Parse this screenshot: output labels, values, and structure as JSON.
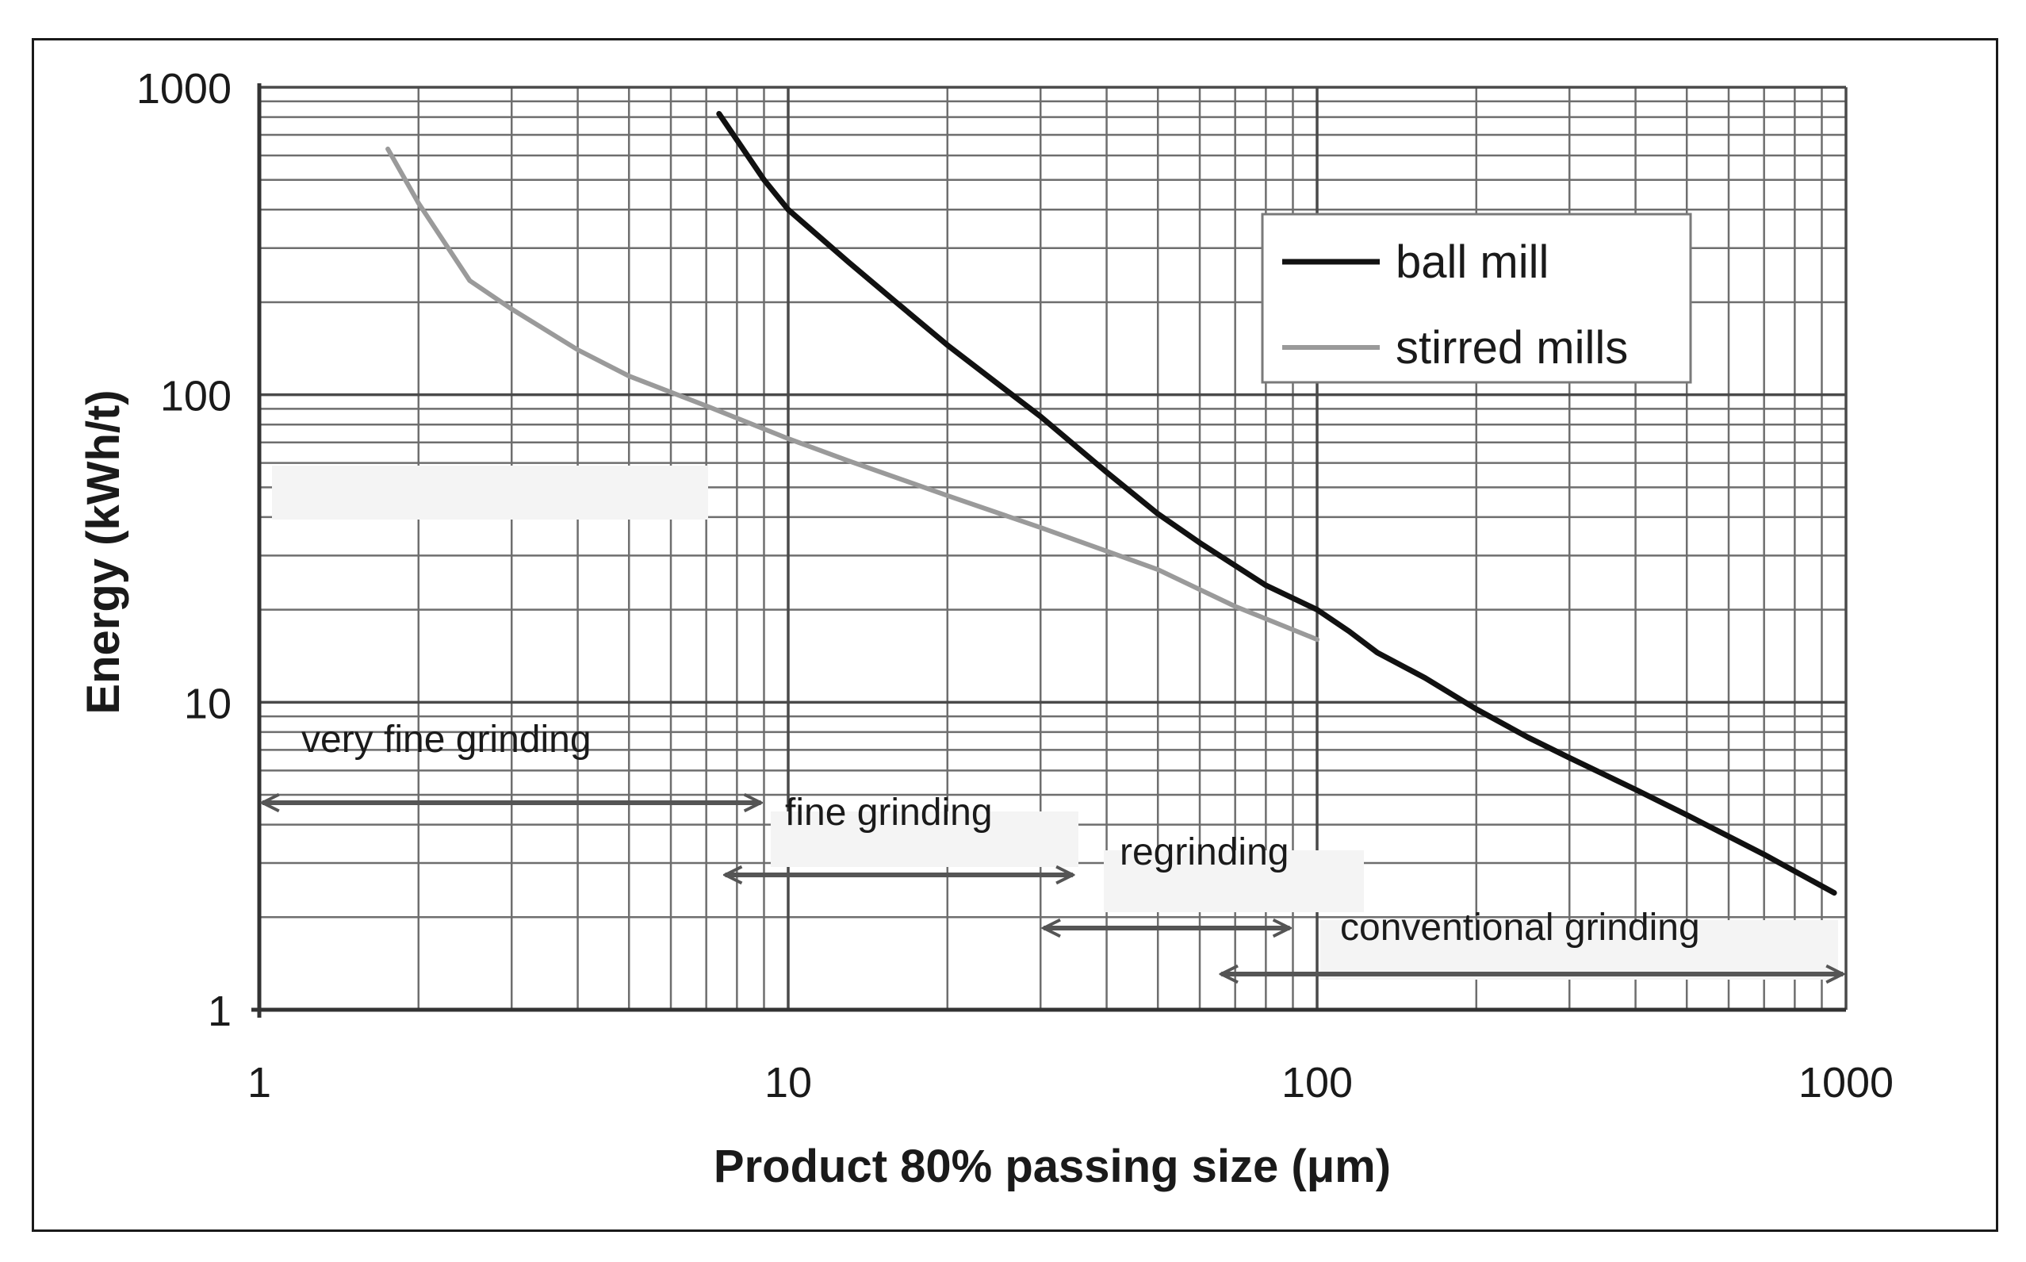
{
  "chart_data": {
    "type": "line",
    "title": "",
    "xlabel": "Product 80% passing size (μm)",
    "ylabel": "Energy (kWh/t)",
    "x_scale": "log",
    "y_scale": "log",
    "xlim": [
      1,
      1000
    ],
    "ylim": [
      1,
      1000
    ],
    "x_ticks": [
      "1",
      "10",
      "100",
      "1000"
    ],
    "y_ticks": [
      "1",
      "10",
      "100",
      "1000"
    ],
    "grid": true,
    "legend_position": "top-right",
    "series": [
      {
        "name": "ball mill",
        "color": "#111111",
        "x": [
          7.4,
          9,
          10,
          13,
          16,
          20,
          25,
          30,
          40,
          50,
          60,
          80,
          100,
          115,
          130,
          160,
          200,
          250,
          300,
          400,
          500,
          700,
          950
        ],
        "y": [
          820,
          500,
          400,
          270,
          200,
          145,
          108,
          85,
          56,
          41,
          33,
          24,
          20,
          17,
          14.5,
          12,
          9.5,
          7.7,
          6.6,
          5.2,
          4.3,
          3.2,
          2.4
        ]
      },
      {
        "name": "stirred mills",
        "color": "#9a9a9a",
        "x": [
          1.75,
          2,
          2.5,
          3,
          4,
          5,
          7,
          10,
          13,
          20,
          30,
          40,
          50,
          70,
          100
        ],
        "y": [
          630,
          420,
          235,
          190,
          140,
          115,
          92,
          72,
          61,
          47,
          37,
          31,
          27,
          20.5,
          16
        ]
      }
    ],
    "regions": [
      {
        "label": "very fine grinding",
        "range": [
          1,
          9
        ]
      },
      {
        "label": "fine grinding",
        "range": [
          7.5,
          35
        ]
      },
      {
        "label": "regrinding",
        "range": [
          30,
          90
        ]
      },
      {
        "label": "conventional grinding",
        "range": [
          65,
          1000
        ]
      }
    ]
  }
}
